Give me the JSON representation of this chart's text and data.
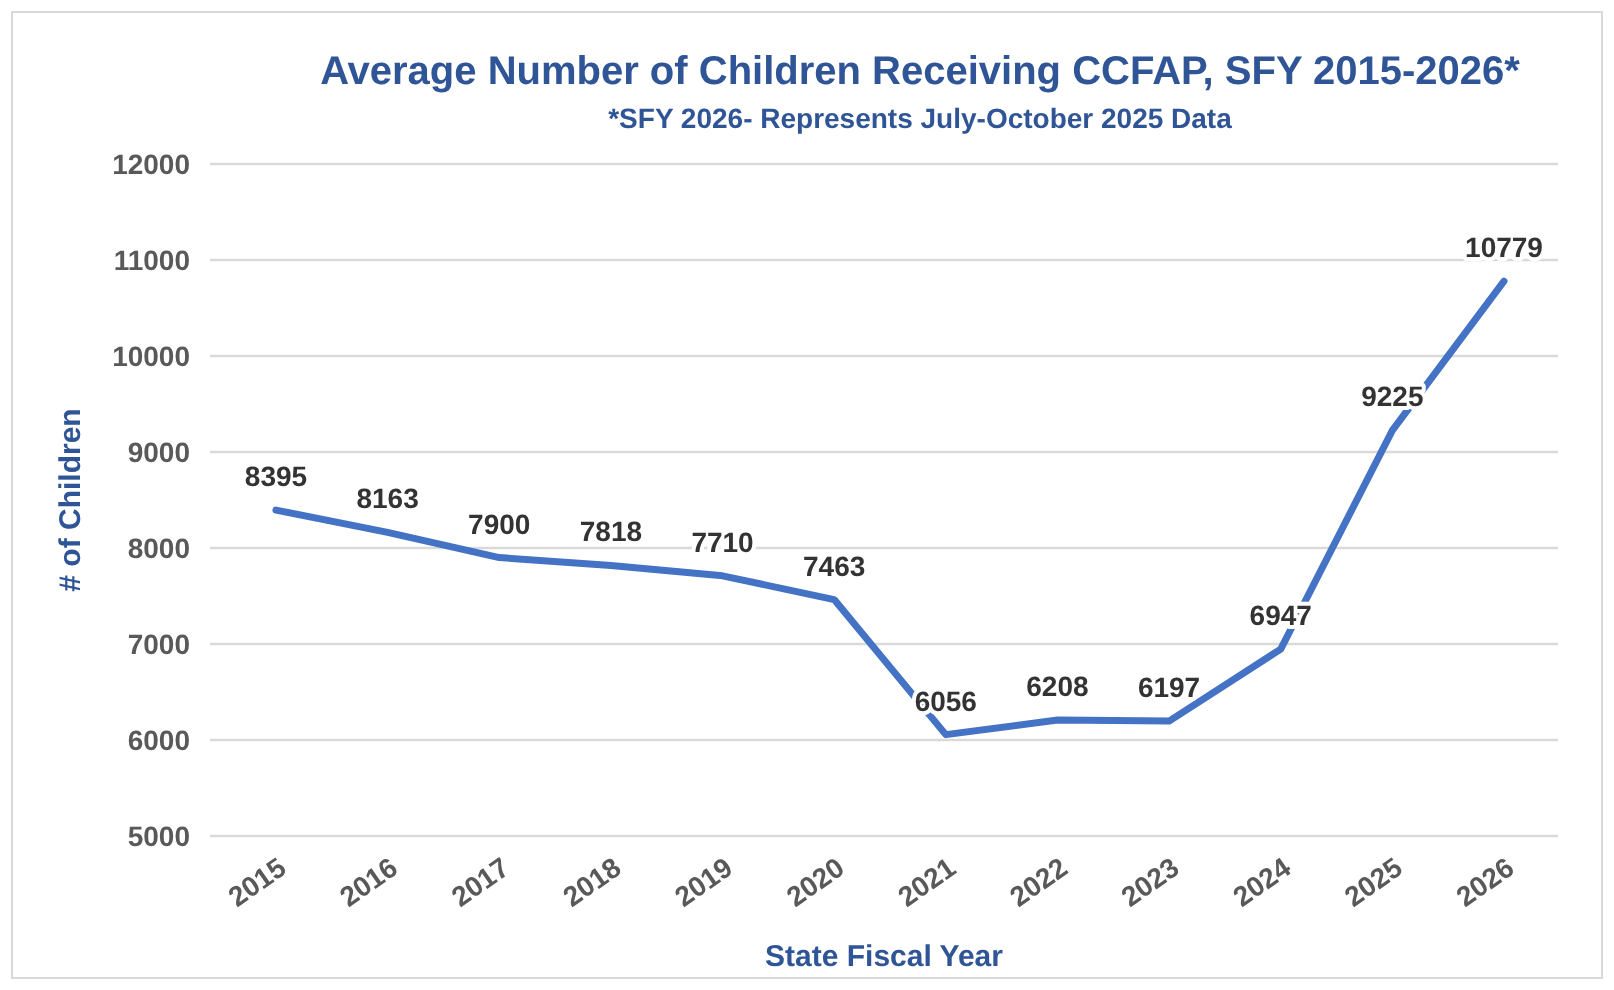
{
  "chart_data": {
    "type": "line",
    "title": "Average Number of Children Receiving CCFAP, SFY 2015-2026*",
    "subtitle": "*SFY 2026- Represents July-October 2025 Data",
    "xlabel": "State Fiscal Year",
    "ylabel": "# of Children",
    "categories": [
      "2015",
      "2016",
      "2017",
      "2018",
      "2019",
      "2020",
      "2021",
      "2022",
      "2023",
      "2024",
      "2025",
      "2026"
    ],
    "series": [
      {
        "color": "#4472c4",
        "values": [
          8395,
          8163,
          7900,
          7818,
          7710,
          7463,
          6056,
          6208,
          6197,
          6947,
          9225,
          10779
        ]
      }
    ],
    "ylim": [
      5000,
      12000
    ],
    "yticks": [
      5000,
      6000,
      7000,
      8000,
      9000,
      10000,
      11000,
      12000
    ],
    "grid": "y",
    "data_labels": true,
    "marker": "none",
    "line_style": "solid"
  }
}
